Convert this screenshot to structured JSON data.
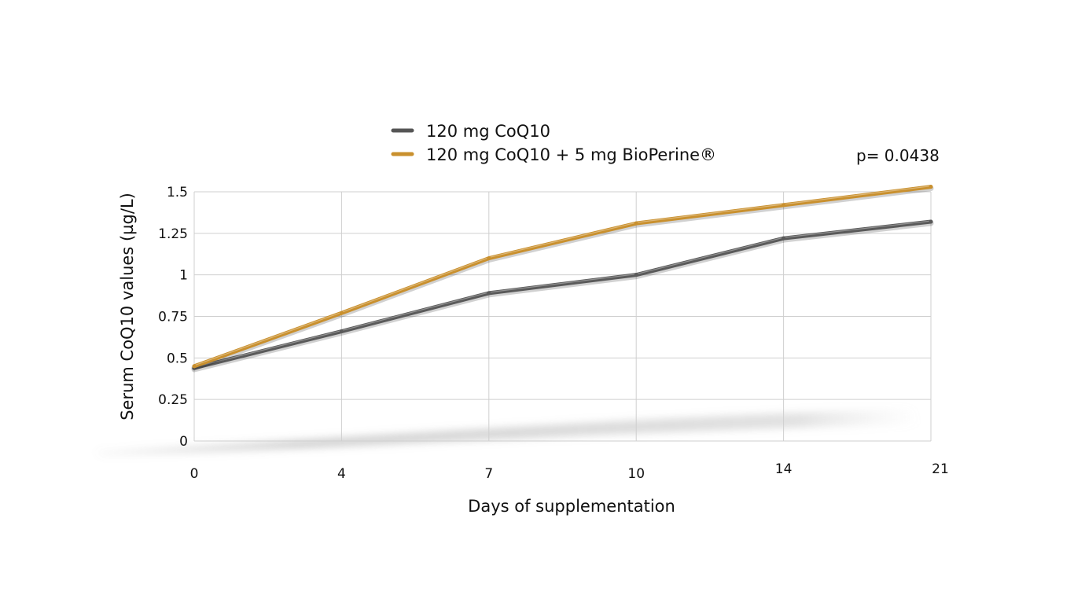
{
  "chart_data": {
    "type": "line",
    "title": "",
    "xlabel": "Days of supplementation",
    "ylabel": "Serum CoQ10 values (µg/L)",
    "x": [
      0,
      4,
      7,
      10,
      14,
      21
    ],
    "x_tick_labels": [
      "0",
      "4",
      "7",
      "10",
      "14",
      "21"
    ],
    "y_tick_labels": [
      "0",
      "0.25",
      "0.5",
      "0.75",
      "1",
      "1.25",
      "1.5"
    ],
    "ylim": [
      0,
      1.5
    ],
    "grid": true,
    "legend_position": "top",
    "annotation": "p= 0.0438",
    "series": [
      {
        "name": "120 mg CoQ10",
        "color": "#5a5a5a",
        "values": [
          0.44,
          0.66,
          0.89,
          1.0,
          1.22,
          1.32
        ]
      },
      {
        "name": "120 mg CoQ10 + 5 mg BioPerine®",
        "color": "#c9902e",
        "values": [
          0.45,
          0.77,
          1.1,
          1.31,
          1.42,
          1.53
        ]
      }
    ]
  }
}
